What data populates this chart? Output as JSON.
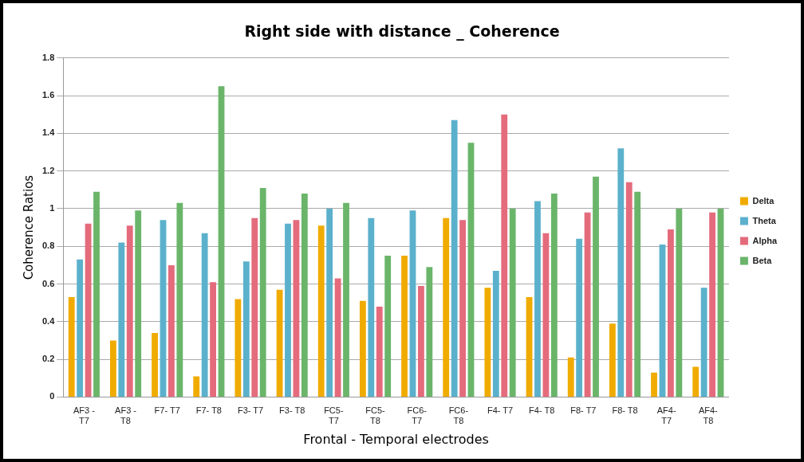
{
  "chart_data": {
    "type": "bar",
    "title": "Right side with distance _ Coherence",
    "xlabel": "Frontal - Temporal electrodes",
    "ylabel": "Coherence Ratios",
    "categories": [
      "AF3 - T7",
      "AF3 - T8",
      "F7- T7",
      "F7- T8",
      "F3- T7",
      "F3- T8",
      "FC5- T7",
      "FC5- T8",
      "FC6- T7",
      "FC6- T8",
      "F4- T7",
      "F4- T8",
      "F8- T7",
      "F8- T8",
      "AF4- T7",
      "AF4- T8"
    ],
    "series": [
      {
        "name": "Delta",
        "color": "#f0ab00",
        "values": [
          0.53,
          0.3,
          0.34,
          0.11,
          0.52,
          0.57,
          0.91,
          0.51,
          0.75,
          0.95,
          0.58,
          0.53,
          0.21,
          0.39,
          0.13,
          0.16
        ]
      },
      {
        "name": "Theta",
        "color": "#5bb1cc",
        "values": [
          0.73,
          0.82,
          0.94,
          0.87,
          0.72,
          0.92,
          1.0,
          0.95,
          0.99,
          1.47,
          0.67,
          1.04,
          0.84,
          1.32,
          0.81,
          0.58
        ]
      },
      {
        "name": "Alpha",
        "color": "#e46b7c",
        "values": [
          0.92,
          0.91,
          0.7,
          0.61,
          0.95,
          0.94,
          0.63,
          0.48,
          0.59,
          0.94,
          1.5,
          0.87,
          0.98,
          1.14,
          0.89,
          0.98
        ]
      },
      {
        "name": "Beta",
        "color": "#6ab56a",
        "values": [
          1.09,
          0.99,
          1.03,
          1.65,
          1.11,
          1.08,
          1.03,
          0.75,
          0.69,
          1.35,
          1.0,
          1.08,
          1.17,
          1.09,
          1.0,
          1.0
        ]
      }
    ],
    "ylim": [
      0,
      1.8
    ],
    "yticks": [
      0,
      0.2,
      0.4,
      0.6,
      0.8,
      1,
      1.2,
      1.4,
      1.6,
      1.8
    ],
    "grid": "y",
    "legend": "right"
  }
}
